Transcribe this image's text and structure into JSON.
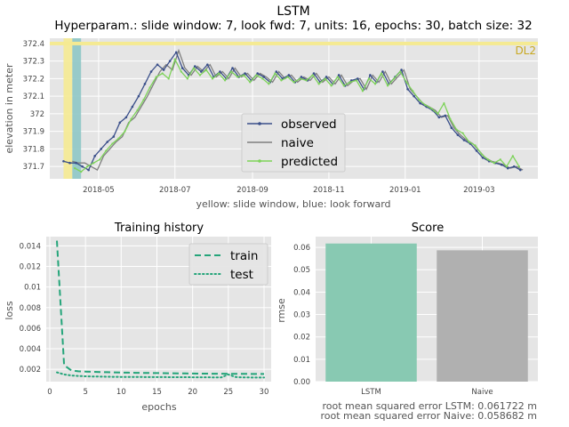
{
  "figure": {
    "title": "LSTM",
    "subtitle": "Hyperparam.: slide window: 7, look fwd: 7, units: 16, epochs: 30, batch size: 32"
  },
  "colors": {
    "panel_bg": "#e5e5e5",
    "grid": "#ffffff",
    "observed": "#3a4f8a",
    "naive": "#7f7f7f",
    "predicted": "#7ed35a",
    "yellow_band": "#f5ea92",
    "blue_band": "#8ec6c5",
    "dl2_text": "#c8a820",
    "train_test": "#25a57a",
    "bar_lstm": "#88c9b2",
    "bar_naive": "#b0b0b0"
  },
  "chart_data": [
    {
      "id": "main",
      "type": "line",
      "xlabel": "yellow: slide window, blue: look forward",
      "ylabel": "elevation in meter",
      "x_ticks": [
        "2018-05",
        "2018-07",
        "2018-09",
        "2018-11",
        "2019-01",
        "2019-03"
      ],
      "x_tick_dates": [
        "2018-05-01",
        "2018-07-01",
        "2018-09-01",
        "2018-11-01",
        "2019-01-01",
        "2019-03-01"
      ],
      "xlim": [
        "2018-03-23",
        "2019-04-17"
      ],
      "y_ticks": [
        371.7,
        371.8,
        371.9,
        372.0,
        372.1,
        372.2,
        372.3,
        372.4
      ],
      "ylim": [
        371.63,
        372.43
      ],
      "reference_line": {
        "label": "DL2",
        "y": 372.4
      },
      "slide_window": [
        "2018-04-03",
        "2018-04-10"
      ],
      "look_forward": [
        "2018-04-10",
        "2018-04-17"
      ],
      "legend": {
        "placement": "lower-center",
        "entries": [
          "observed",
          "naive",
          "predicted"
        ]
      },
      "series": [
        {
          "name": "observed",
          "x": [
            "2018-04-03",
            "2018-04-08",
            "2018-04-13",
            "2018-04-18",
            "2018-04-23",
            "2018-04-28",
            "2018-05-03",
            "2018-05-08",
            "2018-05-13",
            "2018-05-18",
            "2018-05-23",
            "2018-05-28",
            "2018-06-02",
            "2018-06-07",
            "2018-06-12",
            "2018-06-17",
            "2018-06-22",
            "2018-06-27",
            "2018-07-02",
            "2018-07-07",
            "2018-07-12",
            "2018-07-17",
            "2018-07-22",
            "2018-07-27",
            "2018-08-01",
            "2018-08-06",
            "2018-08-11",
            "2018-08-16",
            "2018-08-21",
            "2018-08-26",
            "2018-08-31",
            "2018-09-05",
            "2018-09-10",
            "2018-09-15",
            "2018-09-20",
            "2018-09-25",
            "2018-09-30",
            "2018-10-05",
            "2018-10-10",
            "2018-10-15",
            "2018-10-20",
            "2018-10-25",
            "2018-10-30",
            "2018-11-04",
            "2018-11-09",
            "2018-11-14",
            "2018-11-19",
            "2018-11-24",
            "2018-11-29",
            "2018-12-04",
            "2018-12-09",
            "2018-12-14",
            "2018-12-19",
            "2018-12-24",
            "2018-12-29",
            "2019-01-03",
            "2019-01-08",
            "2019-01-13",
            "2019-01-18",
            "2019-01-23",
            "2019-01-28",
            "2019-02-02",
            "2019-02-07",
            "2019-02-12",
            "2019-02-17",
            "2019-02-22",
            "2019-02-27",
            "2019-03-04",
            "2019-03-09",
            "2019-03-14",
            "2019-03-19",
            "2019-03-24",
            "2019-03-29",
            "2019-04-03"
          ],
          "values": [
            371.73,
            371.72,
            371.72,
            371.7,
            371.68,
            371.76,
            371.8,
            371.84,
            371.87,
            371.95,
            371.98,
            372.04,
            372.1,
            372.17,
            372.24,
            372.28,
            372.25,
            372.3,
            372.35,
            372.26,
            372.22,
            372.27,
            372.24,
            372.28,
            372.21,
            372.24,
            372.2,
            372.26,
            372.21,
            372.23,
            372.19,
            372.23,
            372.21,
            372.18,
            372.24,
            372.2,
            372.22,
            372.18,
            372.21,
            372.19,
            372.23,
            372.18,
            372.21,
            372.17,
            372.22,
            372.16,
            372.19,
            372.2,
            372.14,
            372.22,
            372.18,
            372.24,
            372.17,
            372.21,
            372.25,
            372.14,
            372.1,
            372.06,
            372.04,
            372.02,
            371.98,
            371.99,
            371.92,
            371.88,
            371.85,
            371.83,
            371.79,
            371.75,
            371.73,
            371.72,
            371.71,
            371.69,
            371.7,
            371.68
          ]
        },
        {
          "name": "naive",
          "x": [
            "2018-04-10",
            "2018-04-15",
            "2018-04-20",
            "2018-04-25",
            "2018-04-30",
            "2018-05-05",
            "2018-05-10",
            "2018-05-15",
            "2018-05-20",
            "2018-05-25",
            "2018-05-30",
            "2018-06-04",
            "2018-06-09",
            "2018-06-14",
            "2018-06-19",
            "2018-06-24",
            "2018-06-29",
            "2018-07-04",
            "2018-07-09",
            "2018-07-14",
            "2018-07-19",
            "2018-07-24",
            "2018-07-29",
            "2018-08-03",
            "2018-08-08",
            "2018-08-13",
            "2018-08-18",
            "2018-08-23",
            "2018-08-28",
            "2018-09-02",
            "2018-09-07",
            "2018-09-12",
            "2018-09-17",
            "2018-09-22",
            "2018-09-27",
            "2018-10-02",
            "2018-10-07",
            "2018-10-12",
            "2018-10-17",
            "2018-10-22",
            "2018-10-27",
            "2018-11-01",
            "2018-11-06",
            "2018-11-11",
            "2018-11-16",
            "2018-11-21",
            "2018-11-26",
            "2018-12-01",
            "2018-12-06",
            "2018-12-11",
            "2018-12-16",
            "2018-12-21",
            "2018-12-26",
            "2018-12-31",
            "2019-01-05",
            "2019-01-10",
            "2019-01-15",
            "2019-01-20",
            "2019-01-25",
            "2019-01-30",
            "2019-02-04",
            "2019-02-09",
            "2019-02-14",
            "2019-02-19",
            "2019-02-24",
            "2019-03-01",
            "2019-03-06",
            "2019-03-11",
            "2019-03-16",
            "2019-03-21",
            "2019-03-26",
            "2019-03-31",
            "2019-04-05"
          ],
          "values": [
            371.73,
            371.72,
            371.72,
            371.7,
            371.68,
            371.76,
            371.8,
            371.84,
            371.87,
            371.95,
            371.98,
            372.04,
            372.1,
            372.17,
            372.24,
            372.28,
            372.25,
            372.36,
            372.26,
            372.22,
            372.27,
            372.24,
            372.28,
            372.21,
            372.24,
            372.2,
            372.26,
            372.21,
            372.23,
            372.19,
            372.23,
            372.21,
            372.18,
            372.24,
            372.2,
            372.22,
            372.18,
            372.21,
            372.19,
            372.23,
            372.18,
            372.21,
            372.17,
            372.22,
            372.16,
            372.19,
            372.2,
            372.14,
            372.22,
            372.18,
            372.24,
            372.17,
            372.21,
            372.25,
            372.14,
            372.1,
            372.06,
            372.04,
            372.02,
            371.98,
            371.99,
            371.92,
            371.88,
            371.85,
            371.83,
            371.79,
            371.75,
            371.73,
            371.72,
            371.71,
            371.69,
            371.7,
            371.68
          ]
        },
        {
          "name": "predicted",
          "x": [
            "2018-04-12",
            "2018-04-17",
            "2018-04-22",
            "2018-04-27",
            "2018-05-02",
            "2018-05-07",
            "2018-05-12",
            "2018-05-17",
            "2018-05-22",
            "2018-05-27",
            "2018-06-01",
            "2018-06-06",
            "2018-06-11",
            "2018-06-16",
            "2018-06-21",
            "2018-06-26",
            "2018-07-01",
            "2018-07-06",
            "2018-07-11",
            "2018-07-16",
            "2018-07-21",
            "2018-07-26",
            "2018-07-31",
            "2018-08-05",
            "2018-08-10",
            "2018-08-15",
            "2018-08-20",
            "2018-08-25",
            "2018-08-30",
            "2018-09-04",
            "2018-09-09",
            "2018-09-14",
            "2018-09-19",
            "2018-09-24",
            "2018-09-29",
            "2018-10-04",
            "2018-10-09",
            "2018-10-14",
            "2018-10-19",
            "2018-10-24",
            "2018-10-29",
            "2018-11-03",
            "2018-11-08",
            "2018-11-13",
            "2018-11-18",
            "2018-11-23",
            "2018-11-28",
            "2018-12-03",
            "2018-12-08",
            "2018-12-13",
            "2018-12-18",
            "2018-12-23",
            "2018-12-28",
            "2019-01-02",
            "2019-01-07",
            "2019-01-12",
            "2019-01-17",
            "2019-01-22",
            "2019-01-27",
            "2019-02-01",
            "2019-02-06",
            "2019-02-11",
            "2019-02-16",
            "2019-02-21",
            "2019-02-26",
            "2019-03-03",
            "2019-03-08",
            "2019-03-13",
            "2019-03-18",
            "2019-03-23",
            "2019-03-28",
            "2019-04-02"
          ],
          "values": [
            371.69,
            371.67,
            371.7,
            371.72,
            371.74,
            371.79,
            371.83,
            371.86,
            371.9,
            371.97,
            372.02,
            372.08,
            372.15,
            372.21,
            372.23,
            372.2,
            372.31,
            372.24,
            372.2,
            372.26,
            372.22,
            372.25,
            372.2,
            372.23,
            372.19,
            372.24,
            372.21,
            372.22,
            372.18,
            372.22,
            372.2,
            372.17,
            372.23,
            372.19,
            372.21,
            372.18,
            372.2,
            372.19,
            372.22,
            372.17,
            372.2,
            372.16,
            372.21,
            372.16,
            372.18,
            372.19,
            372.13,
            372.2,
            372.17,
            372.23,
            372.16,
            372.2,
            372.24,
            372.18,
            372.13,
            372.08,
            372.05,
            372.03,
            372.0,
            372.06,
            371.97,
            371.91,
            371.89,
            371.84,
            371.82,
            371.77,
            371.74,
            371.72,
            371.74,
            371.7,
            371.76,
            371.7
          ]
        }
      ]
    },
    {
      "id": "history",
      "type": "line",
      "title": "Training history",
      "xlabel": "epochs",
      "ylabel": "loss",
      "x_ticks": [
        0,
        5,
        10,
        15,
        20,
        25,
        30
      ],
      "xlim": [
        -0.5,
        31
      ],
      "y_ticks": [
        0.002,
        0.004,
        0.006,
        0.008,
        0.01,
        0.012,
        0.014
      ],
      "ylim": [
        0.0008,
        0.0149
      ],
      "legend": {
        "placement": "top-right",
        "entries": [
          "train",
          "test"
        ]
      },
      "series": [
        {
          "name": "train",
          "x": [
            1,
            2,
            3,
            4,
            5,
            6,
            7,
            8,
            9,
            10,
            11,
            12,
            13,
            14,
            15,
            16,
            17,
            18,
            19,
            20,
            21,
            22,
            23,
            24,
            25,
            26,
            27,
            28,
            29,
            30
          ],
          "values": [
            0.0145,
            0.0024,
            0.0019,
            0.0018,
            0.00178,
            0.00175,
            0.00173,
            0.00172,
            0.0017,
            0.00168,
            0.00167,
            0.00166,
            0.00165,
            0.00164,
            0.00163,
            0.00162,
            0.00161,
            0.0016,
            0.0016,
            0.00159,
            0.00158,
            0.00158,
            0.00157,
            0.00157,
            0.00156,
            0.00156,
            0.00155,
            0.00155,
            0.00154,
            0.00154
          ]
        },
        {
          "name": "test",
          "x": [
            1,
            2,
            3,
            4,
            5,
            6,
            7,
            8,
            9,
            10,
            11,
            12,
            13,
            14,
            15,
            16,
            17,
            18,
            19,
            20,
            21,
            22,
            23,
            24,
            25,
            26,
            27,
            28,
            29,
            30
          ],
          "values": [
            0.0017,
            0.0015,
            0.0014,
            0.00135,
            0.00132,
            0.0013,
            0.00129,
            0.00128,
            0.00127,
            0.00126,
            0.00126,
            0.00125,
            0.00125,
            0.00124,
            0.00124,
            0.00124,
            0.00123,
            0.00123,
            0.00123,
            0.00122,
            0.00122,
            0.00122,
            0.00121,
            0.00121,
            0.0015,
            0.00125,
            0.00121,
            0.00121,
            0.0012,
            0.0012
          ]
        }
      ]
    },
    {
      "id": "score",
      "type": "bar",
      "title": "Score",
      "ylabel": "rmse",
      "categories": [
        "LSTM",
        "Naive"
      ],
      "values": [
        0.061722,
        0.058682
      ],
      "y_ticks": [
        0.0,
        0.01,
        0.02,
        0.03,
        0.04,
        0.05,
        0.06
      ],
      "ylim": [
        0,
        0.0648
      ],
      "annotations": [
        "root mean squared error LSTM: 0.061722 m",
        "root mean squared error Naive: 0.058682 m"
      ]
    }
  ]
}
